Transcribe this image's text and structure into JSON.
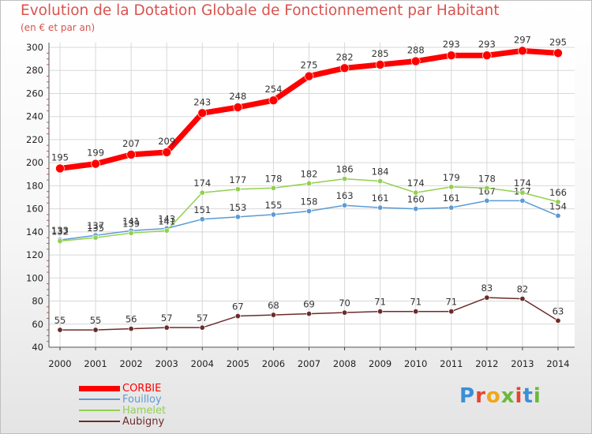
{
  "title": "Evolution de la Dotation Globale de Fonctionnement par Habitant",
  "subtitle": "(en € et par an)",
  "logo": {
    "text": "Proxiti",
    "letter_colors": [
      "#3a8fd8",
      "#e5442f",
      "#f0a71c",
      "#69b93a",
      "#e5442f",
      "#3a8fd8",
      "#69b93a"
    ]
  },
  "colors": {
    "title": "#d9534f",
    "axis_text": "#222222",
    "grid": "#d8d8d8",
    "tick": "#d9534f"
  },
  "chart_data": {
    "type": "line",
    "title": "Evolution de la Dotation Globale de Fonctionnement par Habitant",
    "subtitle": "(en € et par an)",
    "xlabel": "",
    "ylabel": "",
    "x": [
      "2000",
      "2001",
      "2002",
      "2003",
      "2004",
      "2005",
      "2006",
      "2007",
      "2008",
      "2009",
      "2010",
      "2011",
      "2012",
      "2013",
      "2014"
    ],
    "ylim": [
      40,
      300
    ],
    "yticks": [
      40,
      60,
      80,
      100,
      120,
      140,
      160,
      180,
      200,
      220,
      240,
      260,
      280,
      300
    ],
    "grid": true,
    "legend_position": "bottom-left",
    "series": [
      {
        "name": "CORBIE",
        "color": "#ff0000",
        "values": [
          195,
          199,
          207,
          209,
          243,
          248,
          254,
          275,
          282,
          285,
          288,
          293,
          293,
          297,
          295
        ]
      },
      {
        "name": "Fouilloy",
        "color": "#5b9bd5",
        "values": [
          133,
          137,
          141,
          143,
          151,
          153,
          155,
          158,
          163,
          161,
          160,
          161,
          167,
          167,
          154
        ]
      },
      {
        "name": "Hamelet",
        "color": "#92d050",
        "values": [
          132,
          135,
          139,
          141,
          174,
          177,
          178,
          182,
          186,
          184,
          174,
          179,
          178,
          174,
          166
        ]
      },
      {
        "name": "Aubigny",
        "color": "#6b2c2c",
        "values": [
          55,
          55,
          56,
          57,
          57,
          67,
          68,
          69,
          70,
          71,
          71,
          71,
          83,
          82,
          63
        ]
      }
    ]
  }
}
